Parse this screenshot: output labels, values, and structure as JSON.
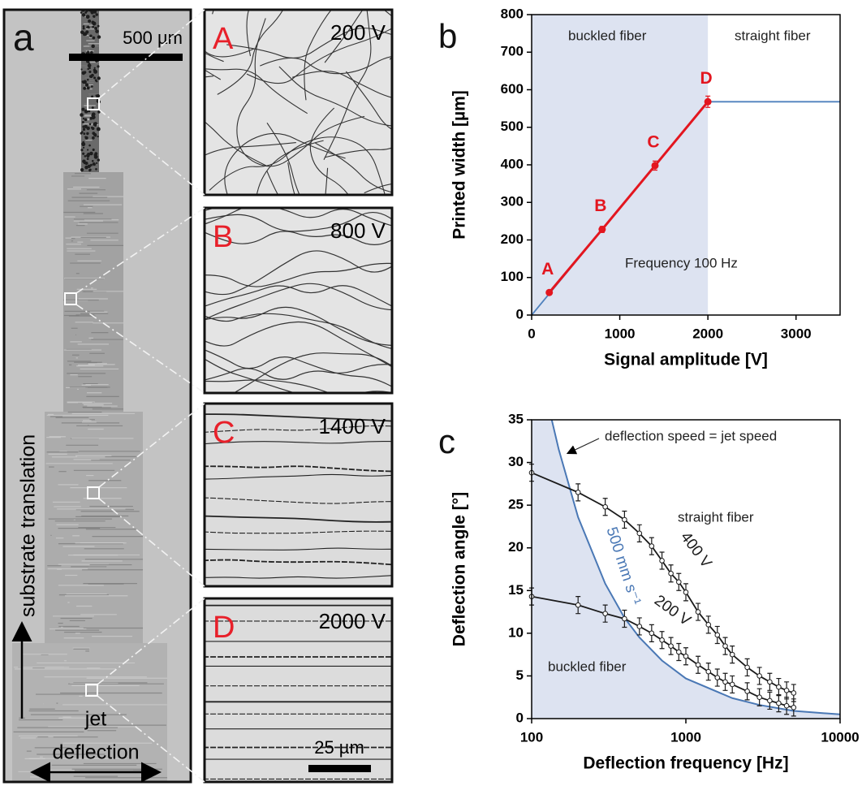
{
  "panel_a": {
    "label": "a",
    "scale_bar": "500 µm",
    "vertical_arrow_label": "substrate translation",
    "horizontal_arrow_label": [
      "jet",
      "deflection"
    ]
  },
  "insets": [
    {
      "label": "A",
      "voltage": "200 V"
    },
    {
      "label": "B",
      "voltage": "800 V"
    },
    {
      "label": "C",
      "voltage": "1400 V"
    },
    {
      "label": "D",
      "voltage": "2000 V",
      "scale_bar": "25 µm"
    }
  ],
  "chart_data": [
    {
      "type": "line",
      "panel_label": "b",
      "xlabel": "Signal amplitude [V]",
      "ylabel": "Printed width [µm]",
      "xlim": [
        0,
        3500
      ],
      "ylim": [
        0,
        800
      ],
      "xticks": [
        0,
        1000,
        2000,
        3000
      ],
      "yticks": [
        0,
        100,
        200,
        300,
        400,
        500,
        600,
        700,
        800
      ],
      "shaded_region": {
        "x": [
          0,
          2000
        ],
        "color": "#dde3f1"
      },
      "annotations": [
        "buckled fiber",
        "straight fiber",
        "Frequency 100 Hz"
      ],
      "series": [
        {
          "color": "#4f81bd",
          "x": [
            0,
            2000,
            3500
          ],
          "values": [
            0,
            568,
            568
          ]
        },
        {
          "color": "#e3161f",
          "x": [
            200,
            800,
            1400,
            2000
          ],
          "values": [
            60,
            228,
            398,
            568
          ],
          "errors": [
            6,
            8,
            12,
            15
          ],
          "point_labels": [
            "A",
            "B",
            "C",
            "D"
          ],
          "markers": "filled"
        }
      ]
    },
    {
      "type": "line",
      "panel_label": "c",
      "xlabel": "Deflection frequency [Hz]",
      "ylabel": "Deflection angle [°]",
      "xscale": "log",
      "xlim": [
        100,
        10000
      ],
      "ylim": [
        0,
        35
      ],
      "xticks": [
        100,
        1000,
        10000
      ],
      "yticks": [
        0,
        5,
        10,
        15,
        20,
        25,
        30,
        35
      ],
      "annotations": [
        "deflection speed = jet speed",
        "straight fiber",
        "buckled fiber"
      ],
      "series": [
        {
          "name": "500 mm s⁻¹",
          "color": "#4a78b5",
          "fill_below": "#dde3f1",
          "x": [
            135,
            150,
            200,
            300,
            400,
            500,
            700,
            1000,
            2000,
            3000,
            5000,
            7000,
            10000
          ],
          "values": [
            35,
            31.5,
            23.6,
            15.8,
            11.8,
            9.5,
            6.8,
            4.7,
            2.4,
            1.6,
            0.9,
            0.7,
            0.5
          ]
        },
        {
          "name": "400 V",
          "color": "#1a1a1a",
          "markers": "open",
          "x": [
            100,
            200,
            300,
            400,
            500,
            600,
            700,
            800,
            900,
            1000,
            1200,
            1400,
            1600,
            1800,
            2000,
            2500,
            3000,
            3500,
            4000,
            4500,
            5000
          ],
          "values": [
            28.8,
            26.5,
            24.8,
            23.3,
            21.7,
            20.2,
            18.5,
            17,
            16,
            14.8,
            12.5,
            11,
            9.8,
            8.5,
            7.5,
            6,
            5,
            4.3,
            3.7,
            3.3,
            3
          ],
          "errors": [
            1,
            1,
            1,
            1,
            1,
            1,
            1,
            1,
            1,
            1,
            1,
            1,
            1,
            1,
            1,
            1,
            1,
            1,
            1,
            1,
            1
          ]
        },
        {
          "name": "200 V",
          "color": "#1a1a1a",
          "markers": "open",
          "x": [
            100,
            200,
            300,
            400,
            500,
            600,
            700,
            800,
            900,
            1000,
            1200,
            1400,
            1600,
            1800,
            2000,
            2500,
            3000,
            3500,
            4000,
            4500,
            5000
          ],
          "values": [
            14.3,
            13.3,
            12.3,
            11.7,
            10.8,
            10,
            9.2,
            8.5,
            7.8,
            7.3,
            6.3,
            5.5,
            4.8,
            4.3,
            4,
            3.2,
            2.5,
            2.1,
            1.8,
            1.5,
            1.3
          ],
          "errors": [
            1,
            1,
            1,
            1,
            1,
            1,
            1,
            1,
            1,
            1,
            1,
            1,
            1,
            1,
            1,
            1,
            1,
            1,
            1,
            1,
            1
          ]
        }
      ]
    }
  ]
}
